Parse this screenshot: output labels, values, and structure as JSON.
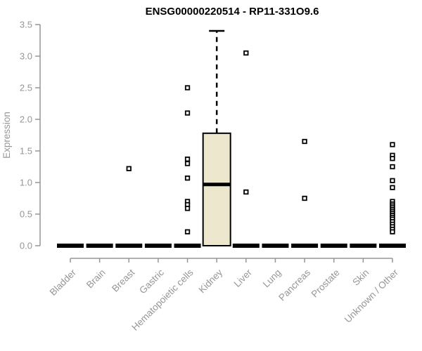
{
  "title": "ENSG00000220514 - RP11-331O9.6",
  "colors": {
    "box_fill": "#ece7cd",
    "box_stroke": "#000000",
    "axis": "#969696",
    "tick_text": "#969696",
    "title_text": "#000000",
    "point_stroke": "#000000",
    "point_fill": "#ffffff"
  },
  "chart_data": {
    "type": "boxplot",
    "title": "ENSG00000220514 - RP11-331O9.6",
    "xlabel": "",
    "ylabel": "Expression",
    "ylim": [
      0.0,
      3.5
    ],
    "ytick_labels": [
      "0.0",
      "0.5",
      "1.0",
      "1.5",
      "2.0",
      "2.5",
      "3.0",
      "3.5"
    ],
    "grid": "off",
    "legend": "none",
    "categories": [
      "Bladder",
      "Brain",
      "Breast",
      "Gastric",
      "Hematopoietic cells",
      "Kidney",
      "Liver",
      "Lung",
      "Pancreas",
      "Prostate",
      "Skin",
      "Unknown / Other"
    ],
    "boxes": [
      {
        "category": "Bladder",
        "q1": 0,
        "median": 0,
        "q3": 0,
        "whisker_low": 0,
        "whisker_high": 0,
        "outliers": []
      },
      {
        "category": "Brain",
        "q1": 0,
        "median": 0,
        "q3": 0,
        "whisker_low": 0,
        "whisker_high": 0,
        "outliers": []
      },
      {
        "category": "Breast",
        "q1": 0,
        "median": 0,
        "q3": 0,
        "whisker_low": 0,
        "whisker_high": 0,
        "outliers": [
          1.22
        ]
      },
      {
        "category": "Gastric",
        "q1": 0,
        "median": 0,
        "q3": 0,
        "whisker_low": 0,
        "whisker_high": 0,
        "outliers": []
      },
      {
        "category": "Hematopoietic cells",
        "q1": 0,
        "median": 0,
        "q3": 0,
        "whisker_low": 0,
        "whisker_high": 0,
        "outliers": [
          2.5,
          2.1,
          1.37,
          1.3,
          1.07,
          0.7,
          0.65,
          0.59,
          0.22
        ]
      },
      {
        "category": "Kidney",
        "q1": 0,
        "median": 0.97,
        "q3": 1.78,
        "whisker_low": 0,
        "whisker_high": 3.4,
        "outliers": []
      },
      {
        "category": "Liver",
        "q1": 0,
        "median": 0,
        "q3": 0,
        "whisker_low": 0,
        "whisker_high": 0,
        "outliers": [
          3.05,
          0.85
        ]
      },
      {
        "category": "Lung",
        "q1": 0,
        "median": 0,
        "q3": 0,
        "whisker_low": 0,
        "whisker_high": 0,
        "outliers": []
      },
      {
        "category": "Pancreas",
        "q1": 0,
        "median": 0,
        "q3": 0,
        "whisker_low": 0,
        "whisker_high": 0,
        "outliers": [
          1.65,
          0.75
        ]
      },
      {
        "category": "Prostate",
        "q1": 0,
        "median": 0,
        "q3": 0,
        "whisker_low": 0,
        "whisker_high": 0,
        "outliers": []
      },
      {
        "category": "Skin",
        "q1": 0,
        "median": 0,
        "q3": 0,
        "whisker_low": 0,
        "whisker_high": 0,
        "outliers": []
      },
      {
        "category": "Unknown / Other",
        "q1": 0,
        "median": 0,
        "q3": 0,
        "whisker_low": 0,
        "whisker_high": 0,
        "outliers": [
          1.6,
          1.43,
          1.38,
          1.25,
          1.03,
          0.92,
          0.7,
          0.66,
          0.63,
          0.6,
          0.57,
          0.54,
          0.51,
          0.48,
          0.45,
          0.42,
          0.38,
          0.34,
          0.3,
          0.26,
          0.22
        ]
      }
    ]
  }
}
